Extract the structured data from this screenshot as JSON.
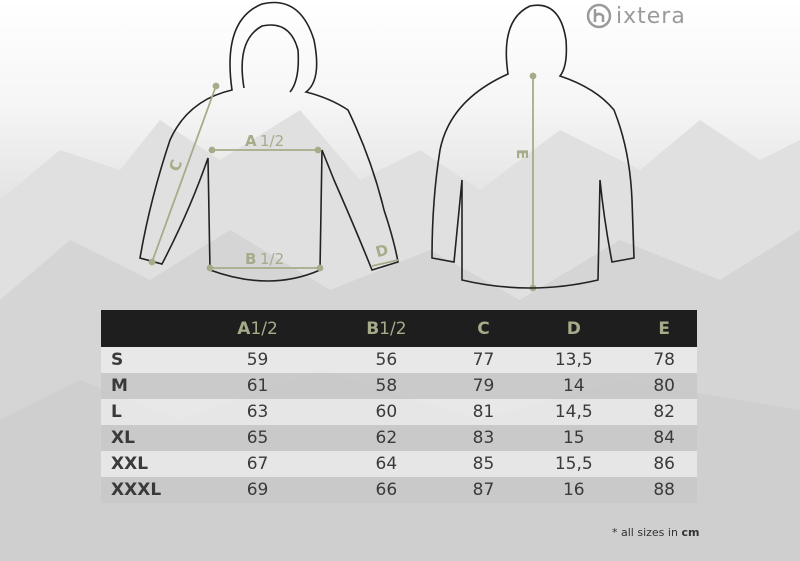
{
  "brand": {
    "name": "ixtera"
  },
  "diagram": {
    "labels": {
      "a": "A",
      "a_half": "1/2",
      "b": "B",
      "b_half": "1/2",
      "c": "C",
      "d": "D",
      "e": "E"
    }
  },
  "table": {
    "headers": [
      {
        "letter": "A",
        "half": "1/2"
      },
      {
        "letter": "B",
        "half": "1/2"
      },
      {
        "letter": "C",
        "half": ""
      },
      {
        "letter": "D",
        "half": ""
      },
      {
        "letter": "E",
        "half": ""
      }
    ],
    "rows": [
      {
        "size": "S",
        "values": [
          "59",
          "56",
          "77",
          "13,5",
          "78"
        ]
      },
      {
        "size": "M",
        "values": [
          "61",
          "58",
          "79",
          "14",
          "80"
        ]
      },
      {
        "size": "L",
        "values": [
          "63",
          "60",
          "81",
          "14,5",
          "82"
        ]
      },
      {
        "size": "XL",
        "values": [
          "65",
          "62",
          "83",
          "15",
          "84"
        ]
      },
      {
        "size": "XXL",
        "values": [
          "67",
          "64",
          "85",
          "15,5",
          "86"
        ]
      },
      {
        "size": "XXXL",
        "values": [
          "69",
          "66",
          "87",
          "16",
          "88"
        ]
      }
    ]
  },
  "note": {
    "prefix": "* all sizes in",
    "unit": "cm"
  },
  "colors": {
    "accent": "#a7ab8a",
    "header_bg": "#1e1e1e",
    "stripe": "#c8c8c8"
  }
}
